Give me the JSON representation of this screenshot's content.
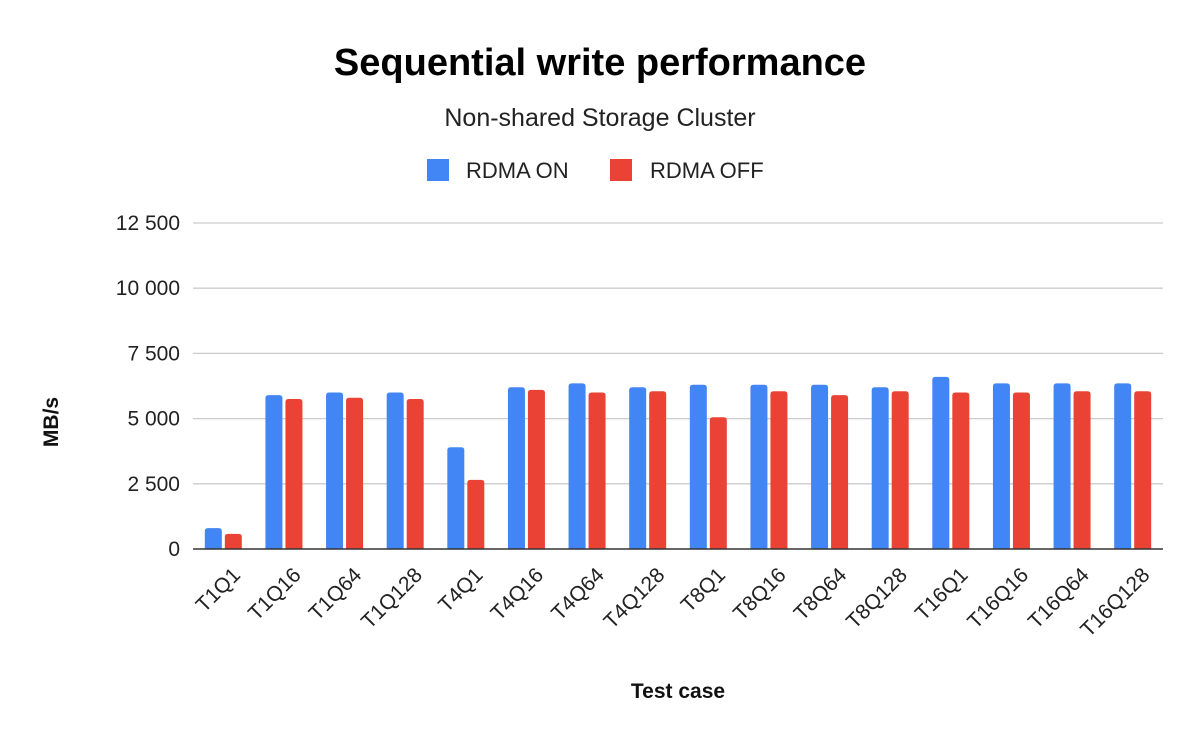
{
  "chart_data": {
    "type": "bar",
    "title": "Sequential write performance",
    "subtitle": "Non-shared Storage Cluster",
    "xlabel": "Test case",
    "ylabel": "MB/s",
    "ylim": [
      0,
      12500
    ],
    "yticks": [
      0,
      2500,
      5000,
      7500,
      10000,
      12500
    ],
    "ytick_labels": [
      "0",
      "2 500",
      "5 000",
      "7 500",
      "10 000",
      "12 500"
    ],
    "grid": true,
    "legend_position": "top-center",
    "categories": [
      "T1Q1",
      "T1Q16",
      "T1Q64",
      "T1Q128",
      "T4Q1",
      "T4Q16",
      "T4Q64",
      "T4Q128",
      "T8Q1",
      "T8Q16",
      "T8Q64",
      "T8Q128",
      "T16Q1",
      "T16Q16",
      "T16Q64",
      "T16Q128"
    ],
    "series": [
      {
        "name": "RDMA ON",
        "color": "#4285F4",
        "values": [
          800,
          5900,
          6000,
          6000,
          3900,
          6200,
          6350,
          6200,
          6300,
          6300,
          6300,
          6200,
          6600,
          6350,
          6350,
          6350
        ]
      },
      {
        "name": "RDMA OFF",
        "color": "#EA4335",
        "values": [
          580,
          5750,
          5800,
          5750,
          2650,
          6100,
          6000,
          6050,
          5050,
          6050,
          5900,
          6050,
          6000,
          6000,
          6050,
          6050
        ]
      }
    ]
  }
}
